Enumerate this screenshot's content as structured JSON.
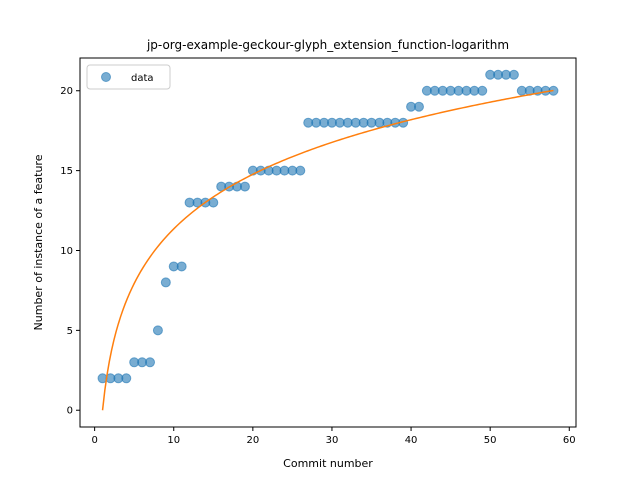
{
  "chart_data": {
    "type": "scatter",
    "title": "jp-org-example-geckour-glyph_extension_function-logarithm",
    "xlabel": "Commit number",
    "ylabel": "Number of instance of a feature",
    "xlim": [
      -1.85,
      60.85
    ],
    "ylim": [
      -1.05,
      22.05
    ],
    "xticks": [
      0,
      10,
      20,
      30,
      40,
      50,
      60
    ],
    "yticks": [
      0,
      5,
      10,
      15,
      20
    ],
    "legend": {
      "position": "top-left",
      "entries": [
        "data"
      ]
    },
    "colors": {
      "data": "#1f77b4",
      "fit": "#ff7f0e"
    },
    "series": [
      {
        "name": "data",
        "kind": "scatter",
        "x": [
          1,
          2,
          3,
          4,
          5,
          6,
          7,
          8,
          9,
          10,
          11,
          12,
          13,
          14,
          15,
          16,
          17,
          18,
          19,
          20,
          21,
          22,
          23,
          24,
          25,
          26,
          27,
          28,
          29,
          30,
          31,
          32,
          33,
          34,
          35,
          36,
          37,
          38,
          39,
          40,
          41,
          42,
          43,
          44,
          45,
          46,
          47,
          48,
          49,
          50,
          51,
          52,
          53,
          54,
          55,
          56,
          57,
          58
        ],
        "y": [
          2,
          2,
          2,
          2,
          3,
          3,
          3,
          5,
          8,
          9,
          9,
          13,
          13,
          13,
          13,
          14,
          14,
          14,
          14,
          15,
          15,
          15,
          15,
          15,
          15,
          15,
          18,
          18,
          18,
          18,
          18,
          18,
          18,
          18,
          18,
          18,
          18,
          18,
          18,
          19,
          19,
          20,
          20,
          20,
          20,
          20,
          20,
          20,
          20,
          21,
          21,
          21,
          21,
          20,
          20,
          20,
          20,
          20
        ]
      },
      {
        "kind": "line",
        "function": "a*ln(x)+b",
        "a": 4.93,
        "b": 0,
        "x_range": [
          1,
          58
        ]
      }
    ]
  }
}
